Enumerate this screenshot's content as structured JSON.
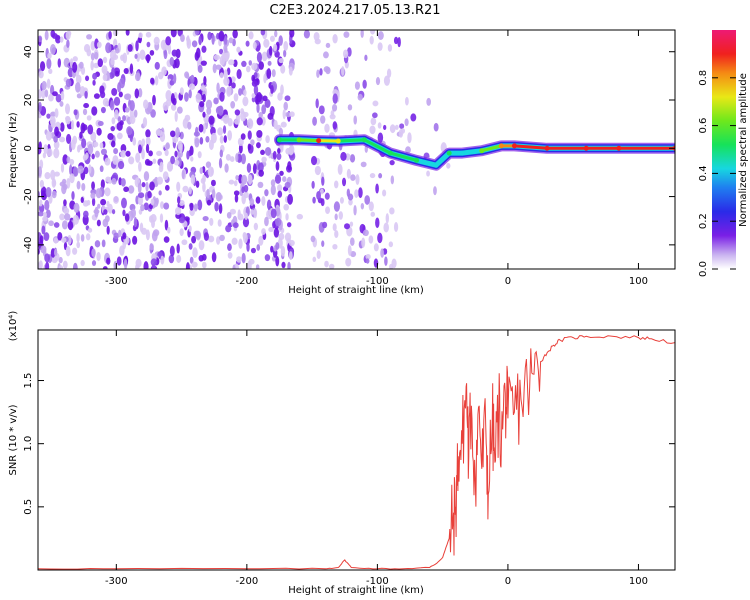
{
  "figure": {
    "title": "C2E3.2024.217.05.13.R21"
  },
  "chart_data": [
    {
      "type": "heatmap",
      "title": "C2E3.2024.217.05.13.R21",
      "xlabel": "Height of straight line (km)",
      "ylabel": "Frequency (Hz)",
      "xlim": [
        -360,
        128
      ],
      "ylim": [
        -50,
        49
      ],
      "xticks": [
        -300,
        -200,
        -100,
        0,
        100
      ],
      "yticks": [
        -40,
        -20,
        0,
        20,
        40
      ],
      "colorscale": "rainbow",
      "colorbar": {
        "label": "Normalized spectral amplitude",
        "range": [
          0.0,
          1.0
        ],
        "ticks": [
          0.0,
          0.2,
          0.4,
          0.6,
          0.8
        ],
        "tick_labels": [
          "0.0",
          "0.2",
          "0.4",
          "0.6",
          "0.8"
        ]
      },
      "signal_track": [
        {
          "x": -175,
          "y": 3.5,
          "amp": 0.5
        },
        {
          "x": -160,
          "y": 3.5,
          "amp": 0.6
        },
        {
          "x": -145,
          "y": 3.2,
          "amp": 0.95
        },
        {
          "x": -130,
          "y": 3.0,
          "amp": 0.7
        },
        {
          "x": -110,
          "y": 3.5,
          "amp": 0.5
        },
        {
          "x": -90,
          "y": -2.0,
          "amp": 0.5
        },
        {
          "x": -70,
          "y": -5.0,
          "amp": 0.5
        },
        {
          "x": -55,
          "y": -7.0,
          "amp": 0.45
        },
        {
          "x": -45,
          "y": -2.0,
          "amp": 0.5
        },
        {
          "x": -35,
          "y": -2.0,
          "amp": 0.45
        },
        {
          "x": -20,
          "y": -1.0,
          "amp": 0.6
        },
        {
          "x": -5,
          "y": 1.0,
          "amp": 0.85
        },
        {
          "x": 5,
          "y": 1.0,
          "amp": 0.95
        },
        {
          "x": 30,
          "y": 0.0,
          "amp": 1.0
        },
        {
          "x": 60,
          "y": 0.0,
          "amp": 1.0
        },
        {
          "x": 85,
          "y": 0.0,
          "amp": 1.0
        },
        {
          "x": 128,
          "y": 0.0,
          "amp": 1.0
        }
      ]
    },
    {
      "type": "line",
      "xlabel": "Height of straight line (km)",
      "ylabel": "SNR (10 * v/v)",
      "y_multiplier": "(x10⁴)",
      "xlim": [
        -360,
        128
      ],
      "ylim": [
        0,
        1.9
      ],
      "xticks": [
        -300,
        -200,
        -100,
        0,
        100
      ],
      "yticks": [
        0.5,
        1.0,
        1.5
      ],
      "ytick_labels": [
        "0.5",
        "1.0",
        "1.5"
      ],
      "color": "#e8403a",
      "series": [
        {
          "x": [
            -360,
            -300,
            -200,
            -140,
            -130,
            -125,
            -120,
            -100,
            -80,
            -60,
            -55,
            -50,
            -45,
            -42,
            -40,
            -38,
            -35,
            -32,
            -30,
            -28,
            -25,
            -22,
            -20,
            -17,
            -15,
            -12,
            -10,
            -7,
            -5,
            -2,
            0,
            5,
            10,
            15,
            20,
            25,
            30,
            35,
            40,
            50,
            60,
            80,
            100,
            110,
            128
          ],
          "y": [
            0.01,
            0.01,
            0.01,
            0.01,
            0.02,
            0.08,
            0.02,
            0.01,
            0.01,
            0.02,
            0.05,
            0.1,
            0.25,
            0.4,
            0.5,
            0.9,
            1.0,
            1.45,
            0.9,
            1.3,
            0.7,
            1.3,
            0.8,
            1.15,
            0.6,
            1.2,
            0.85,
            1.3,
            1.0,
            1.4,
            1.2,
            1.25,
            1.35,
            1.45,
            1.55,
            1.65,
            1.72,
            1.78,
            1.82,
            1.84,
            1.85,
            1.85,
            1.84,
            1.83,
            1.8
          ]
        }
      ]
    }
  ]
}
